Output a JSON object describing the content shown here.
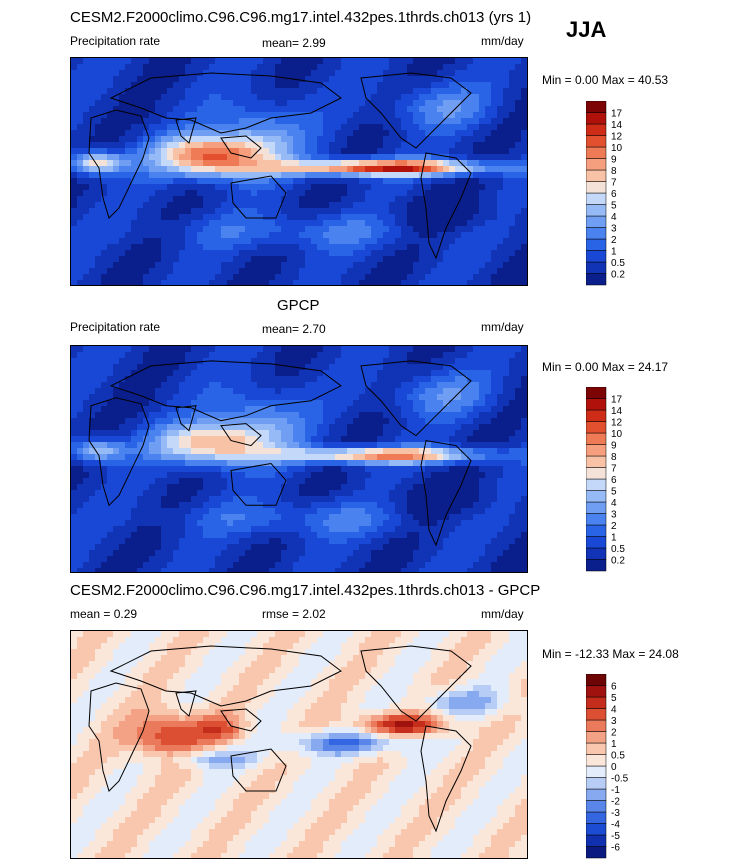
{
  "season": "JJA",
  "panels": [
    {
      "title": "CESM2.F2000climo.C96.C96.mg17.intel.432pes.1thrds.ch013 (yrs 1)",
      "left_label": "Precipitation rate",
      "mid_label": "mean=   2.99",
      "units": "mm/day",
      "minmax": "Min =   0.00 Max =  40.53",
      "colorbar": {
        "levels": [
          "0.2",
          "0.5",
          "1",
          "2",
          "3",
          "4",
          "5",
          "6",
          "7",
          "8",
          "9",
          "10",
          "12",
          "14",
          "17"
        ],
        "colors": [
          "#0b1f8c",
          "#1133b5",
          "#1a48d6",
          "#2a64e6",
          "#4a82ef",
          "#6f9ef3",
          "#96baf6",
          "#c4d8f9",
          "#f4e2d8",
          "#f8c2a6",
          "#f59f7e",
          "#ee7b55",
          "#e2502f",
          "#cf2c17",
          "#b0120b",
          "#7d0404"
        ]
      },
      "field": "model"
    },
    {
      "title": "GPCP",
      "left_label": "Precipitation rate",
      "mid_label": "mean=   2.70",
      "units": "mm/day",
      "minmax": "Min =   0.00 Max =  24.17",
      "colorbar": {
        "levels": [
          "0.2",
          "0.5",
          "1",
          "2",
          "3",
          "4",
          "5",
          "6",
          "7",
          "8",
          "9",
          "10",
          "12",
          "14",
          "17"
        ],
        "colors": [
          "#0b1f8c",
          "#1133b5",
          "#1a48d6",
          "#2a64e6",
          "#4a82ef",
          "#6f9ef3",
          "#96baf6",
          "#c4d8f9",
          "#f4e2d8",
          "#f8c2a6",
          "#f59f7e",
          "#ee7b55",
          "#e2502f",
          "#cf2c17",
          "#b0120b",
          "#7d0404"
        ]
      },
      "field": "obs"
    },
    {
      "title": "CESM2.F2000climo.C96.C96.mg17.intel.432pes.1thrds.ch013 - GPCP",
      "left_label": "mean =   0.29",
      "mid_label": "rmse =   2.02",
      "units": "mm/day",
      "minmax": "Min = -12.33 Max =  24.08",
      "colorbar": {
        "levels": [
          "-6",
          "-5",
          "-4",
          "-3",
          "-2",
          "-1",
          "-0.5",
          "0",
          "0.5",
          "1",
          "2",
          "3",
          "4",
          "5",
          "6"
        ],
        "colors": [
          "#0a1a80",
          "#1030b0",
          "#1c4bd4",
          "#3566e2",
          "#5a86ea",
          "#86a9f0",
          "#b7cdf6",
          "#e3ecfa",
          "#fbe6da",
          "#f8c7ae",
          "#f3a285",
          "#ea7a5b",
          "#dc4f33",
          "#c42c1b",
          "#a0120d",
          "#6e0505"
        ]
      },
      "field": "diff"
    }
  ]
}
